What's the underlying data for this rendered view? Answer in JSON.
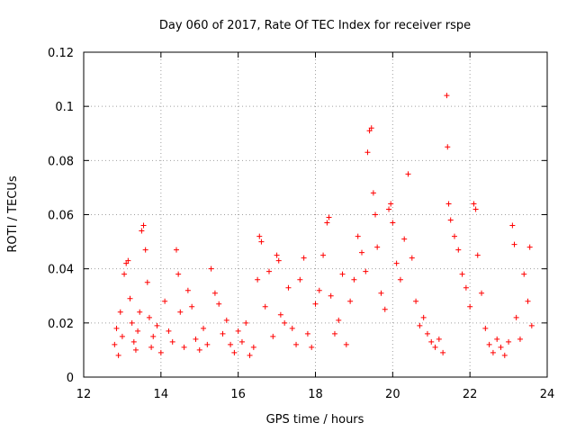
{
  "chart_data": {
    "type": "scatter",
    "title": "Day 060 of 2017, Rate Of TEC Index for receiver rspe",
    "xlabel": "GPS time / hours",
    "ylabel": "ROTI / TECUs",
    "xlim": [
      12,
      24
    ],
    "ylim": [
      0,
      0.12
    ],
    "x_ticks": [
      12,
      14,
      16,
      18,
      20,
      22,
      24
    ],
    "y_ticks": [
      0,
      0.02,
      0.04,
      0.06,
      0.08,
      0.1,
      0.12
    ],
    "x_tick_labels": [
      "12",
      "14",
      "16",
      "18",
      "20",
      "22",
      "24"
    ],
    "y_tick_labels": [
      "0",
      "0.02",
      "0.04",
      "0.06",
      "0.08",
      "0.1",
      "0.12"
    ],
    "grid": true,
    "marker": "plus",
    "point_color": "#ff0000",
    "series": [
      {
        "name": "ROTI",
        "points": [
          [
            12.8,
            0.012
          ],
          [
            12.85,
            0.018
          ],
          [
            12.9,
            0.008
          ],
          [
            12.95,
            0.024
          ],
          [
            13.0,
            0.015
          ],
          [
            13.05,
            0.038
          ],
          [
            13.1,
            0.042
          ],
          [
            13.15,
            0.043
          ],
          [
            13.2,
            0.029
          ],
          [
            13.25,
            0.02
          ],
          [
            13.3,
            0.013
          ],
          [
            13.35,
            0.01
          ],
          [
            13.4,
            0.017
          ],
          [
            13.45,
            0.024
          ],
          [
            13.5,
            0.054
          ],
          [
            13.55,
            0.056
          ],
          [
            13.6,
            0.047
          ],
          [
            13.65,
            0.035
          ],
          [
            13.7,
            0.022
          ],
          [
            13.75,
            0.011
          ],
          [
            13.8,
            0.015
          ],
          [
            13.9,
            0.019
          ],
          [
            14.0,
            0.009
          ],
          [
            14.1,
            0.028
          ],
          [
            14.2,
            0.017
          ],
          [
            14.3,
            0.013
          ],
          [
            14.4,
            0.047
          ],
          [
            14.45,
            0.038
          ],
          [
            14.5,
            0.024
          ],
          [
            14.6,
            0.011
          ],
          [
            14.7,
            0.032
          ],
          [
            14.8,
            0.026
          ],
          [
            14.9,
            0.014
          ],
          [
            15.0,
            0.01
          ],
          [
            15.1,
            0.018
          ],
          [
            15.2,
            0.012
          ],
          [
            15.3,
            0.04
          ],
          [
            15.4,
            0.031
          ],
          [
            15.5,
            0.027
          ],
          [
            15.6,
            0.016
          ],
          [
            15.7,
            0.021
          ],
          [
            15.8,
            0.012
          ],
          [
            15.9,
            0.009
          ],
          [
            16.0,
            0.017
          ],
          [
            16.1,
            0.013
          ],
          [
            16.2,
            0.02
          ],
          [
            16.3,
            0.008
          ],
          [
            16.4,
            0.011
          ],
          [
            16.5,
            0.036
          ],
          [
            16.55,
            0.052
          ],
          [
            16.6,
            0.05
          ],
          [
            16.7,
            0.026
          ],
          [
            16.8,
            0.039
          ],
          [
            16.9,
            0.015
          ],
          [
            17.0,
            0.045
          ],
          [
            17.05,
            0.043
          ],
          [
            17.1,
            0.023
          ],
          [
            17.2,
            0.02
          ],
          [
            17.3,
            0.033
          ],
          [
            17.4,
            0.018
          ],
          [
            17.5,
            0.012
          ],
          [
            17.6,
            0.036
          ],
          [
            17.7,
            0.044
          ],
          [
            17.8,
            0.016
          ],
          [
            17.9,
            0.011
          ],
          [
            18.0,
            0.027
          ],
          [
            18.1,
            0.032
          ],
          [
            18.2,
            0.045
          ],
          [
            18.3,
            0.057
          ],
          [
            18.35,
            0.059
          ],
          [
            18.4,
            0.03
          ],
          [
            18.5,
            0.016
          ],
          [
            18.6,
            0.021
          ],
          [
            18.7,
            0.038
          ],
          [
            18.8,
            0.012
          ],
          [
            18.9,
            0.028
          ],
          [
            19.0,
            0.036
          ],
          [
            19.1,
            0.052
          ],
          [
            19.2,
            0.046
          ],
          [
            19.3,
            0.039
          ],
          [
            19.35,
            0.083
          ],
          [
            19.4,
            0.091
          ],
          [
            19.45,
            0.092
          ],
          [
            19.5,
            0.068
          ],
          [
            19.55,
            0.06
          ],
          [
            19.6,
            0.048
          ],
          [
            19.7,
            0.031
          ],
          [
            19.8,
            0.025
          ],
          [
            19.9,
            0.062
          ],
          [
            19.95,
            0.064
          ],
          [
            20.0,
            0.057
          ],
          [
            20.1,
            0.042
          ],
          [
            20.2,
            0.036
          ],
          [
            20.3,
            0.051
          ],
          [
            20.4,
            0.075
          ],
          [
            20.5,
            0.044
          ],
          [
            20.6,
            0.028
          ],
          [
            20.7,
            0.019
          ],
          [
            20.8,
            0.022
          ],
          [
            20.9,
            0.016
          ],
          [
            21.0,
            0.013
          ],
          [
            21.1,
            0.011
          ],
          [
            21.2,
            0.014
          ],
          [
            21.3,
            0.009
          ],
          [
            21.4,
            0.104
          ],
          [
            21.42,
            0.085
          ],
          [
            21.45,
            0.064
          ],
          [
            21.5,
            0.058
          ],
          [
            21.6,
            0.052
          ],
          [
            21.7,
            0.047
          ],
          [
            21.8,
            0.038
          ],
          [
            21.9,
            0.033
          ],
          [
            22.0,
            0.026
          ],
          [
            22.1,
            0.064
          ],
          [
            22.15,
            0.062
          ],
          [
            22.2,
            0.045
          ],
          [
            22.3,
            0.031
          ],
          [
            22.4,
            0.018
          ],
          [
            22.5,
            0.012
          ],
          [
            22.6,
            0.009
          ],
          [
            22.7,
            0.014
          ],
          [
            22.8,
            0.011
          ],
          [
            22.9,
            0.008
          ],
          [
            23.0,
            0.013
          ],
          [
            23.1,
            0.056
          ],
          [
            23.15,
            0.049
          ],
          [
            23.2,
            0.022
          ],
          [
            23.3,
            0.014
          ],
          [
            23.4,
            0.038
          ],
          [
            23.5,
            0.028
          ],
          [
            23.55,
            0.048
          ],
          [
            23.6,
            0.019
          ]
        ]
      }
    ]
  }
}
